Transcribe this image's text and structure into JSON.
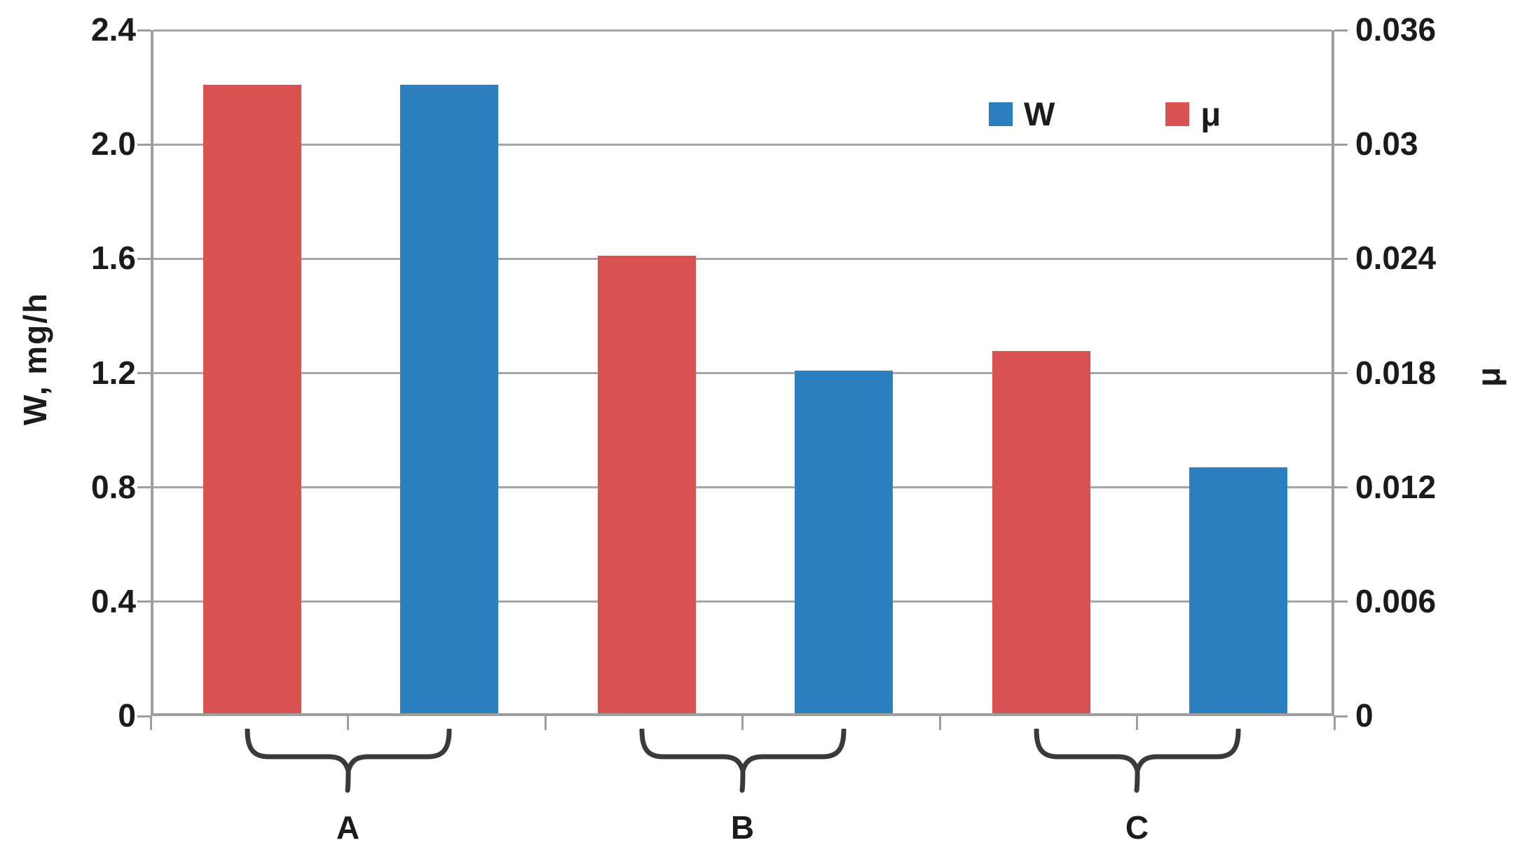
{
  "chart_data": {
    "type": "bar",
    "title": "",
    "categories": [
      "A",
      "B",
      "C"
    ],
    "series": [
      {
        "name": "μ",
        "axis": "right",
        "color": "#d95151",
        "values": [
          0.033,
          0.024,
          0.019
        ]
      },
      {
        "name": "W",
        "axis": "left",
        "color": "#2b7fbd",
        "values": [
          2.2,
          1.2,
          0.86
        ]
      }
    ],
    "series_order_in_group": [
      "μ",
      "W"
    ],
    "left_axis": {
      "title": "W, mg/h",
      "ticks": [
        "2.4",
        "2.0",
        "1.6",
        "1.2",
        "0.8",
        "0.4",
        "0"
      ],
      "min": 0,
      "max": 2.4
    },
    "right_axis": {
      "title": "μ",
      "ticks": [
        "0.036",
        "0.03",
        "0.024",
        "0.018",
        "0.012",
        "0.006",
        "0"
      ],
      "min": 0,
      "max": 0.036
    },
    "legend": {
      "position": "top-inside",
      "items": [
        {
          "label": "W",
          "color": "#2b7fbd"
        },
        {
          "label": "μ",
          "color": "#d95151"
        }
      ]
    },
    "grid": true,
    "gridline_color": "#a6a6a6",
    "axis_line_color": "#9e9e9e",
    "brace_color": "#3a3a3a",
    "text_color": "#1b1b1b"
  }
}
